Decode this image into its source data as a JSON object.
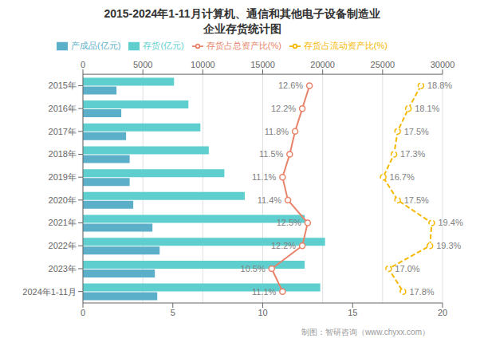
{
  "chart_data": {
    "type": "bar",
    "orientation": "horizontal",
    "title": "2015-2024年1-11月计算机、通信和其他电子设备制造业",
    "subtitle": "企业存货统计图",
    "annotations": [
      "制图：智研咨询（www.chyxx.com）"
    ],
    "categories": [
      "2015年",
      "2016年",
      "2017年",
      "2018年",
      "2019年",
      "2020年",
      "2021年",
      "2022年",
      "2023年",
      "2024年1-11月"
    ],
    "series": [
      {
        "name": "存货(亿元)",
        "type": "bar",
        "color": "#5ECFCE",
        "values": [
          7600,
          8800,
          9800,
          10500,
          11800,
          13500,
          18500,
          20200,
          18500,
          19800
        ]
      },
      {
        "name": "产成品(亿元)",
        "type": "bar",
        "color": "#5BAFC8",
        "values": [
          2800,
          3200,
          3600,
          3900,
          3900,
          4200,
          5800,
          6400,
          6000,
          6200
        ]
      },
      {
        "name": "存货占流动资产比(%)",
        "type": "line",
        "axis": "y2",
        "color": "#F5B800",
        "line_style": "dashed",
        "marker": "o",
        "data_labels": true,
        "values": [
          18.8,
          18.1,
          17.5,
          17.3,
          16.7,
          17.5,
          19.4,
          19.3,
          17.0,
          17.8
        ],
        "value_labels": [
          "18.8%",
          "18.1%",
          "17.5%",
          "17.3%",
          "16.7%",
          "17.5%",
          "19.4%",
          "19.3%",
          "17.0%",
          "17.8%"
        ]
      },
      {
        "name": "存货占总资产比(%)",
        "type": "line",
        "axis": "y2",
        "color": "#E8836A",
        "line_style": "solid",
        "marker": "o",
        "data_labels": true,
        "values": [
          12.6,
          12.2,
          11.8,
          11.5,
          11.1,
          11.4,
          12.5,
          12.2,
          10.5,
          11.1
        ],
        "value_labels": [
          "12.6%",
          "12.2%",
          "11.8%",
          "11.5%",
          "11.1%",
          "11.4%",
          "12.5%",
          "12.2%",
          "10.5%",
          "11.1%"
        ]
      }
    ],
    "xlim": [
      0,
      30000
    ],
    "xticks": [
      0,
      5000,
      10000,
      15000,
      20000,
      25000,
      30000
    ],
    "y2lim": [
      0,
      20
    ],
    "y2ticks": [
      0,
      5,
      10,
      15,
      20
    ],
    "grid": true,
    "legend": "top"
  }
}
